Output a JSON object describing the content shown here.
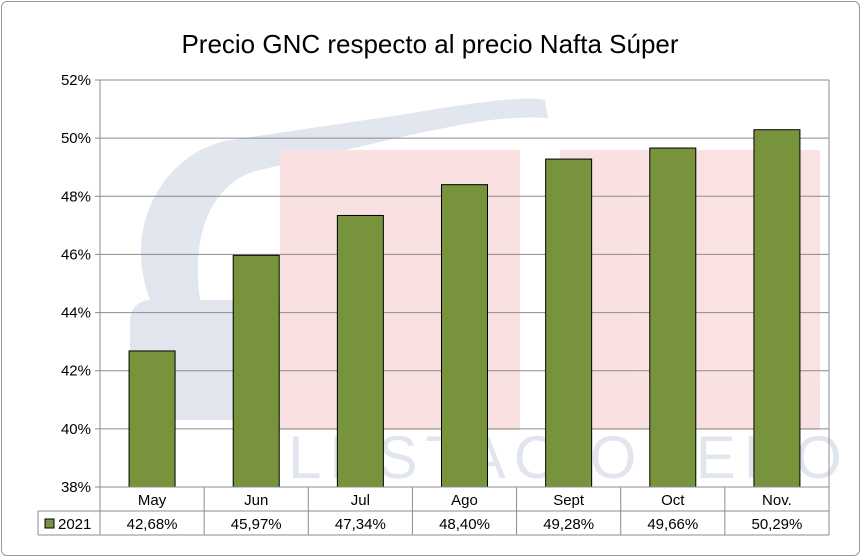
{
  "chart_data": {
    "type": "bar",
    "title": "Precio GNC respecto al precio Nafta Súper",
    "categories": [
      "May",
      "Jun",
      "Jul",
      "Ago",
      "Sept",
      "Oct",
      "Nov."
    ],
    "series": [
      {
        "name": "2021",
        "values": [
          42.68,
          45.97,
          47.34,
          48.4,
          49.28,
          49.66,
          50.29
        ],
        "labels": [
          "42,68%",
          "45,97%",
          "47,34%",
          "48,40%",
          "49,28%",
          "49,66%",
          "50,29%"
        ],
        "color": "#77933c"
      }
    ],
    "ylim": [
      38,
      52
    ],
    "yticks": [
      38,
      40,
      42,
      44,
      46,
      48,
      50,
      52
    ],
    "ytick_labels": [
      "38%",
      "40%",
      "42%",
      "44%",
      "46%",
      "48%",
      "50%",
      "52%"
    ],
    "grid": true,
    "legend": "data-table",
    "watermark_text": "ELESTACIONERO"
  }
}
